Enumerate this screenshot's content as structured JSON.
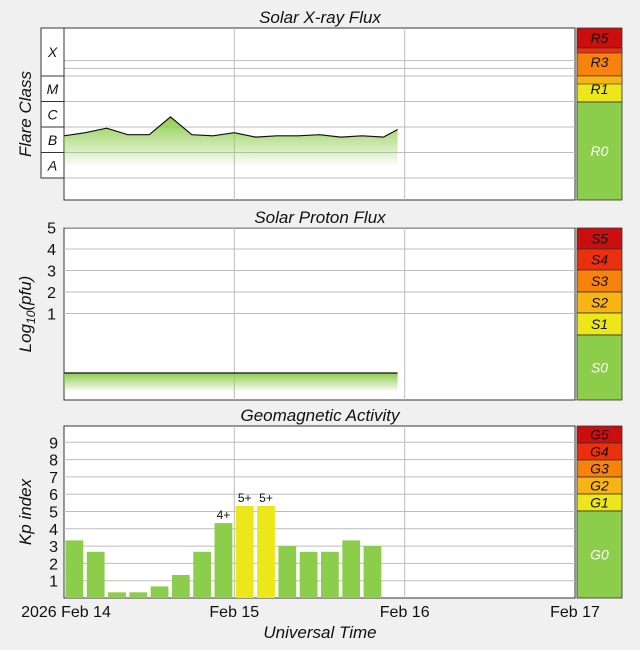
{
  "colors": {
    "quiet": "#8ccd4b",
    "minor": "#ece71b",
    "moderate": "#f8b414",
    "strong": "#f7820c",
    "severe": "#ea300e",
    "extreme": "#cb0e0e",
    "kp_quiet_bar": "#8ccd4b",
    "kp_storm_bar": "#ece71b"
  },
  "xray": {
    "title": "Solar X-ray Flux",
    "ylabel": "Flare Class",
    "classes": [
      "X",
      "M",
      "C",
      "B",
      "A"
    ],
    "scale": [
      "R5",
      "R3",
      "R1",
      "R0"
    ]
  },
  "proton": {
    "title": "Solar Proton Flux",
    "ylabel_main": "Log",
    "ylabel_sub": "10",
    "ylabel_rest": "(pfu)",
    "ticks": [
      "5",
      "4",
      "3",
      "2",
      "1"
    ],
    "scale": [
      "S5",
      "S4",
      "S3",
      "S2",
      "S1",
      "S0"
    ]
  },
  "geomag": {
    "title": "Geomagnetic Activity",
    "ylabel": "Kp index",
    "ticks": [
      "9",
      "8",
      "7",
      "6",
      "5",
      "4",
      "3",
      "2",
      "1"
    ],
    "scale": [
      "G5",
      "G4",
      "G3",
      "G2",
      "G1",
      "G0"
    ]
  },
  "xaxis": {
    "labels": [
      "2026 Feb 14",
      "Feb 15",
      "Feb 16",
      "Feb 17"
    ],
    "title": "Universal Time"
  },
  "chart_data": [
    {
      "type": "line",
      "title": "Solar X-ray Flux",
      "ylabel": "Flare Class",
      "y_scale": "log",
      "y_categories": [
        "A",
        "B",
        "C",
        "M",
        "X"
      ],
      "x_range": [
        "2026-02-14 00:00",
        "2026-02-17 00:00"
      ],
      "series": [
        {
          "x": [
            "2026-02-14 00:00",
            "2026-02-14 03:00",
            "2026-02-14 06:00",
            "2026-02-14 09:00",
            "2026-02-14 12:00",
            "2026-02-14 15:00",
            "2026-02-14 18:00",
            "2026-02-14 21:00",
            "2026-02-15 00:00",
            "2026-02-15 03:00",
            "2026-02-15 06:00",
            "2026-02-15 09:00",
            "2026-02-15 12:00",
            "2026-02-15 15:00",
            "2026-02-15 18:00",
            "2026-02-15 21:00",
            "2026-02-15 23:00"
          ],
          "y": [
            4.5e-07,
            6e-07,
            9e-07,
            5e-07,
            5e-07,
            2.5e-06,
            5e-07,
            4.5e-07,
            6e-07,
            4e-07,
            4.5e-07,
            4.5e-07,
            5e-07,
            4e-07,
            4.5e-07,
            4e-07,
            8e-07
          ]
        }
      ]
    },
    {
      "type": "line",
      "title": "Solar Proton Flux",
      "ylabel": "Log10(pfu)",
      "ylim": [
        -2,
        6
      ],
      "x_range": [
        "2026-02-14 00:00",
        "2026-02-17 00:00"
      ],
      "series": [
        {
          "x": [
            "2026-02-14 00:00",
            "2026-02-14 12:00",
            "2026-02-15 00:00",
            "2026-02-15 12:00",
            "2026-02-15 23:00"
          ],
          "y": [
            -0.7,
            -0.7,
            -0.7,
            -0.7,
            -0.7
          ]
        }
      ]
    },
    {
      "type": "bar",
      "title": "Geomagnetic Activity",
      "ylabel": "Kp index",
      "ylim": [
        0,
        10
      ],
      "categories": [
        "2026-02-14 00:00",
        "2026-02-14 03:00",
        "2026-02-14 06:00",
        "2026-02-14 09:00",
        "2026-02-14 12:00",
        "2026-02-14 15:00",
        "2026-02-14 18:00",
        "2026-02-14 21:00",
        "2026-02-15 00:00",
        "2026-02-15 03:00",
        "2026-02-15 06:00",
        "2026-02-15 09:00",
        "2026-02-15 12:00",
        "2026-02-15 15:00",
        "2026-02-15 18:00"
      ],
      "values": [
        3.33,
        2.67,
        0.33,
        0.33,
        0.67,
        1.33,
        2.67,
        4.33,
        5.33,
        5.33,
        3.0,
        2.67,
        2.67,
        3.33,
        3.0
      ],
      "data_labels": [
        "",
        "",
        "",
        "",
        "",
        "",
        "",
        "4+",
        "5+",
        "5+",
        "",
        "",
        "",
        "",
        ""
      ],
      "x_labels": [
        "2026 Feb 14",
        "Feb 15",
        "Feb 16",
        "Feb 17"
      ],
      "xlabel": "Universal Time"
    }
  ]
}
